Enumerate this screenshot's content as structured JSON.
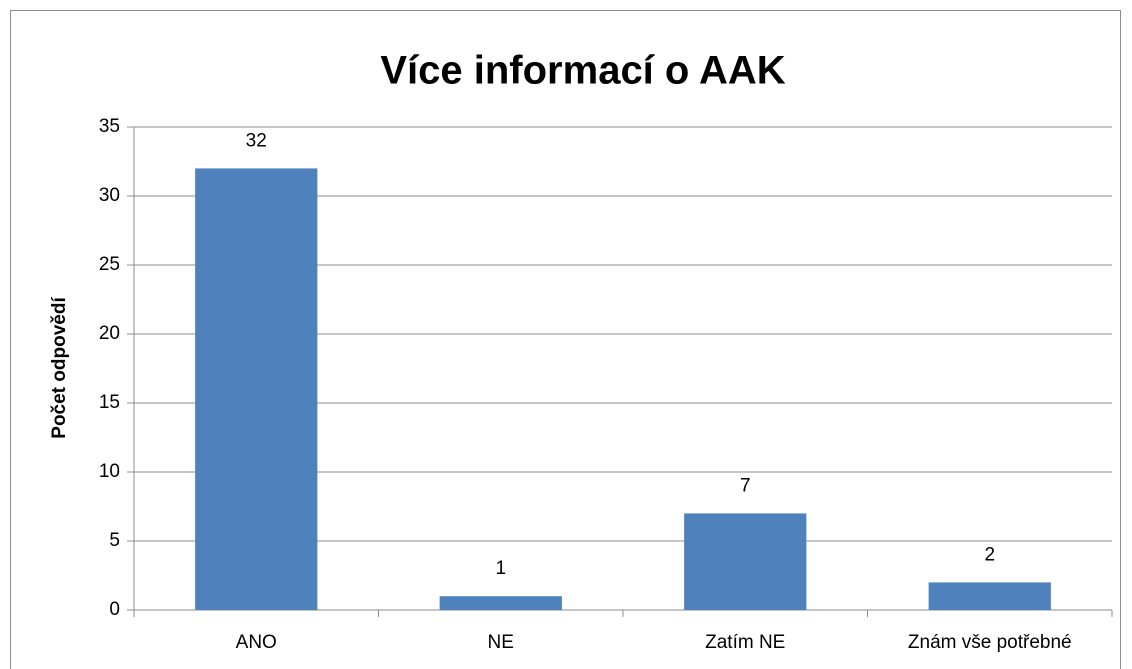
{
  "chart_data": {
    "type": "bar",
    "title": "Více informací o AAK",
    "y_label": "Počet odpovědí",
    "categories": [
      "ANO",
      "NE",
      "Zatím NE",
      "Znám vše potřebné"
    ],
    "values": [
      32,
      1,
      7,
      2
    ],
    "color": "#4f81bd",
    "ylim": [
      0,
      35
    ],
    "yticks": [
      0,
      5,
      10,
      15,
      20,
      25,
      30,
      35
    ],
    "grid": true,
    "data_labels": true
  }
}
